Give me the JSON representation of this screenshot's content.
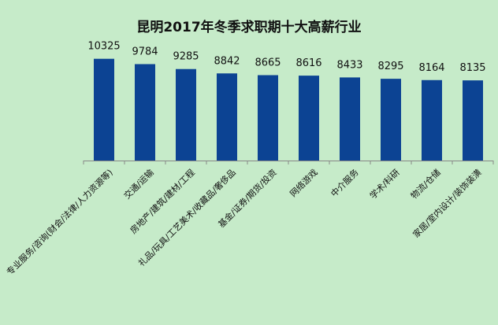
{
  "chart_data": {
    "type": "bar",
    "title": "昆明2017年冬季求职期十大高薪行业",
    "categories": [
      "专业服务/咨询(财会/法律/人力资源等)",
      "交通/运输",
      "房地产/建筑/建材/工程",
      "礼品/玩具/工艺美术/收藏品/奢侈品",
      "基金/证券/期货/投资",
      "网络游戏",
      "中介服务",
      "学术/科研",
      "物流/仓储",
      "家居/室内设计/装饰装潢"
    ],
    "values": [
      10325,
      9784,
      9285,
      8842,
      8665,
      8616,
      8433,
      8295,
      8164,
      8135
    ],
    "ylim": [
      0,
      11500
    ],
    "grid": false,
    "legend": false,
    "colors": {
      "bar": "#0c4393",
      "background": "#c6ebc9",
      "axis": "#888888"
    }
  }
}
